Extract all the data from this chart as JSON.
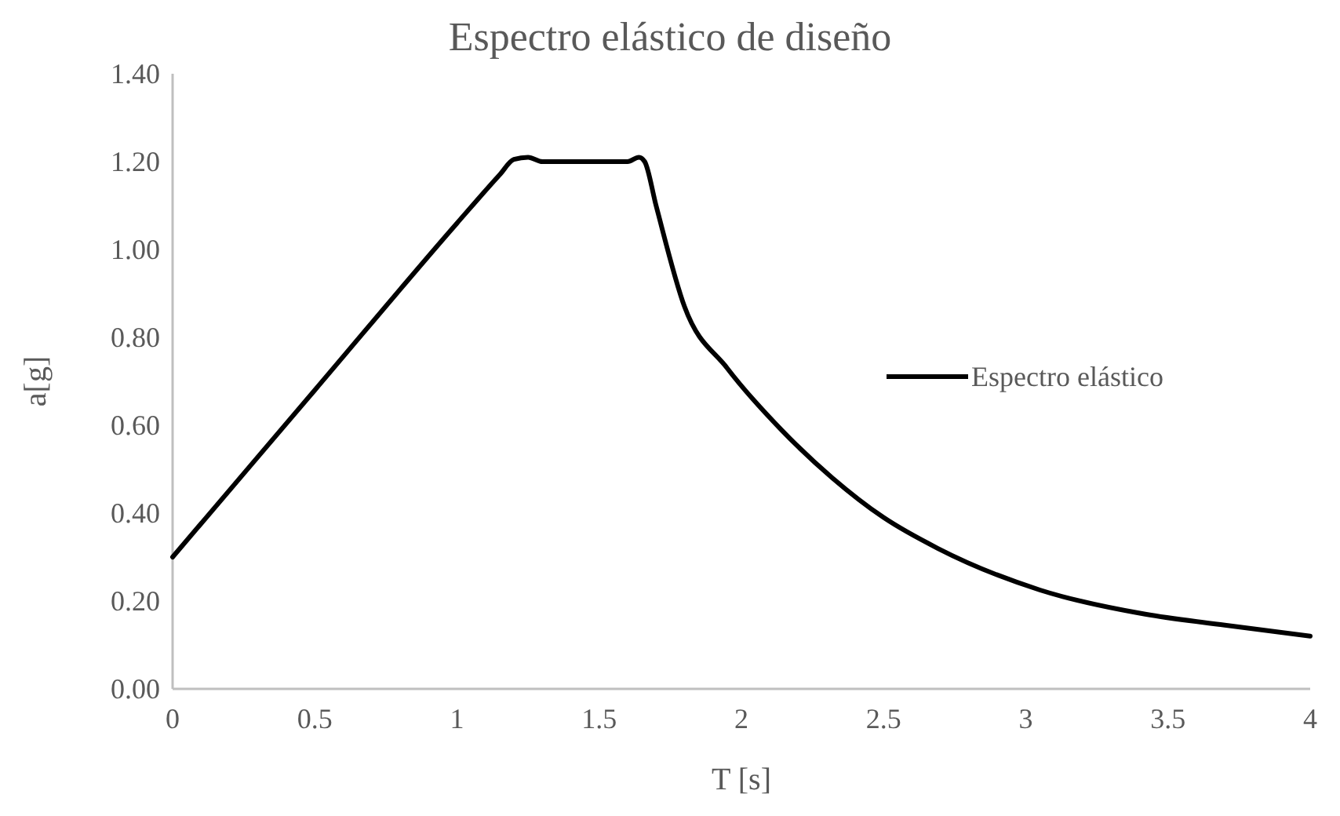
{
  "chart_data": {
    "type": "line",
    "title": "Espectro elástico de diseño",
    "xlabel": "T [s]",
    "ylabel": "a[g]",
    "xlim": [
      0,
      4
    ],
    "xticks": [
      0,
      0.5,
      1,
      1.5,
      2,
      2.5,
      3,
      3.5,
      4
    ],
    "ylim": [
      0,
      1.4
    ],
    "yticks": [
      {
        "value": 0,
        "label": "0.00"
      },
      {
        "value": 0.2,
        "label": "0.20"
      },
      {
        "value": 0.4,
        "label": "0.40"
      },
      {
        "value": 0.6,
        "label": "0.60"
      },
      {
        "value": 0.8,
        "label": "0.80"
      },
      {
        "value": 1,
        "label": "1.00"
      },
      {
        "value": 1.2,
        "label": "1.20"
      },
      {
        "value": 1.4,
        "label": "1.40"
      }
    ],
    "grid": false,
    "legend": "right",
    "marker": "none",
    "line_style": "solid",
    "series": [
      {
        "name": "Espectro elástico",
        "color": "#000000",
        "x": [
          0,
          0.5,
          1,
          1.15,
          1.2,
          1.25,
          1.3,
          1.4,
          1.5,
          1.6,
          1.64,
          1.66,
          1.7,
          1.8,
          1.95,
          2.14,
          2.32,
          2.5,
          2.69,
          3.05,
          3.42,
          3.7,
          4
        ],
        "values": [
          0.3,
          0.68,
          1.06,
          1.17,
          1.205,
          1.21,
          1.2,
          1.2,
          1.2,
          1.2,
          1.21,
          1.2,
          1.1,
          0.87,
          0.73,
          0.59,
          0.48,
          0.39,
          0.32,
          0.225,
          0.17,
          0.145,
          0.12
        ]
      }
    ]
  }
}
